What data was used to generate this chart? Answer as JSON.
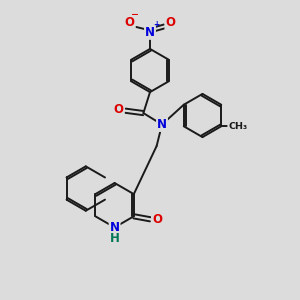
{
  "bg_color": "#dcdcdc",
  "bond_color": "#1a1a1a",
  "bond_width": 1.4,
  "dbo": 0.07,
  "atom_colors": {
    "N": "#0000dd",
    "O": "#dd0000",
    "H": "#007755",
    "C": "#1a1a1a"
  },
  "fs": 8.5
}
